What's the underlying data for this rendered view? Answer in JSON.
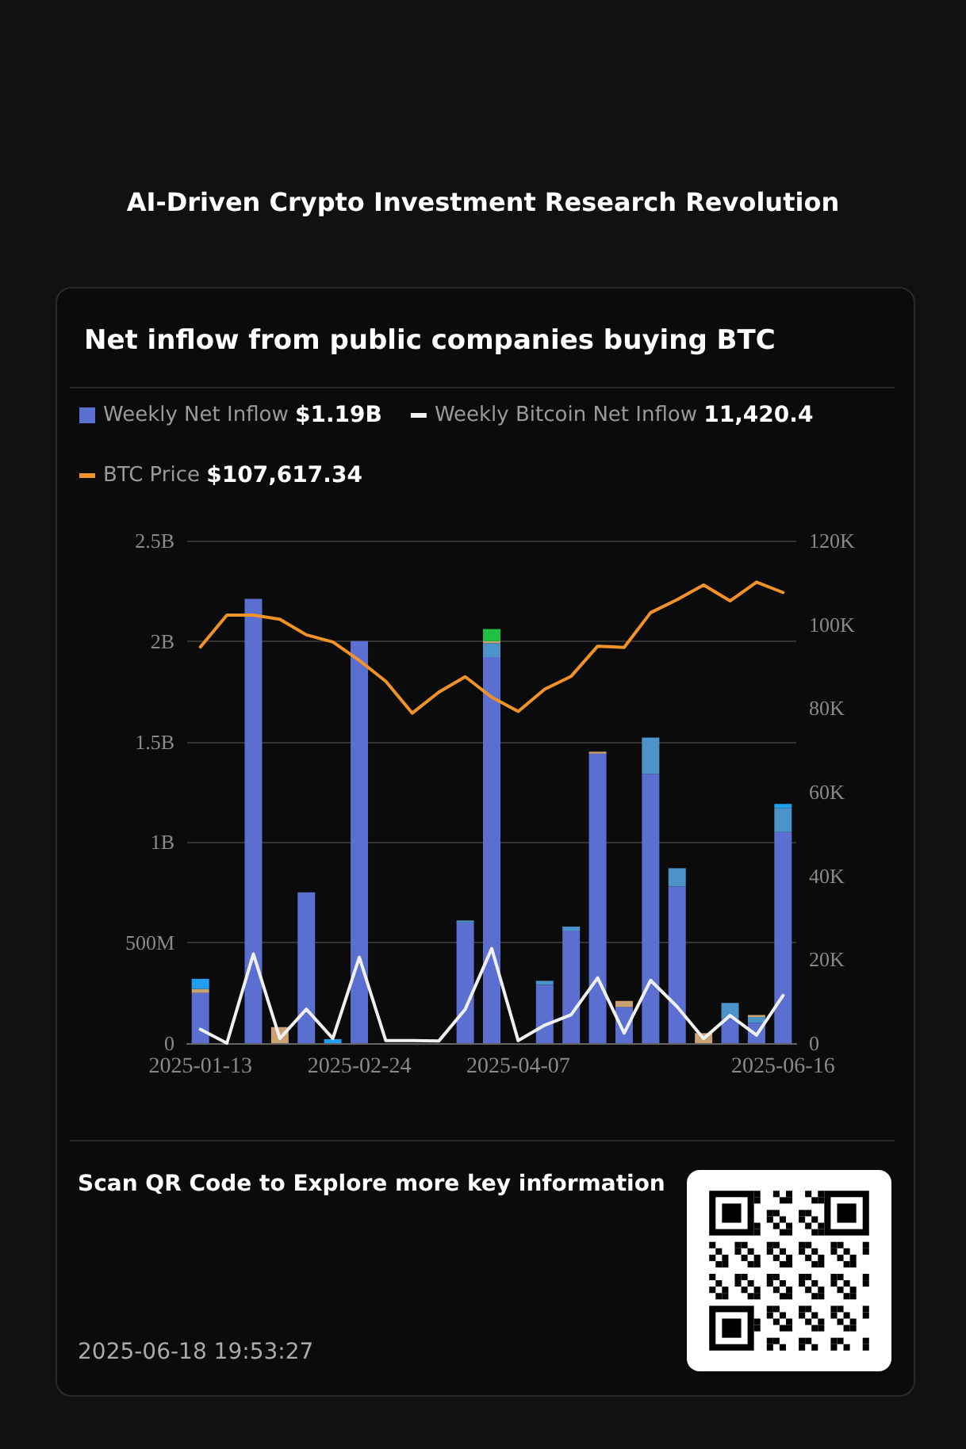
{
  "chart_data": {
    "type": "bar",
    "title": "Net inflow from public companies buying BTC",
    "subtitle": "AI-Driven Crypto Investment Research Revolution",
    "categories": [
      "2025-01-13",
      null,
      null,
      null,
      null,
      null,
      "2025-02-24",
      null,
      null,
      null,
      null,
      null,
      "2025-04-07",
      null,
      null,
      null,
      null,
      null,
      null,
      null,
      null,
      null,
      "2025-06-16"
    ],
    "stacked": true,
    "series": [
      {
        "name": "Weekly Net Inflow",
        "color": "#5a6fd0",
        "values": [
          250000000,
          null,
          2210000000,
          null,
          750000000,
          null,
          2000000000,
          null,
          null,
          null,
          600000000,
          1920000000,
          null,
          290000000,
          560000000,
          1440000000,
          180000000,
          1340000000,
          780000000,
          null,
          120000000,
          100000000,
          1050000000
        ]
      },
      {
        "color": "#4b93c9",
        "values": [
          null,
          null,
          null,
          null,
          null,
          null,
          null,
          null,
          null,
          null,
          10000000,
          70000000,
          null,
          20000000,
          20000000,
          null,
          null,
          180000000,
          90000000,
          null,
          80000000,
          30000000,
          120000000
        ]
      },
      {
        "color": "#c9a273",
        "values": [
          20000000,
          null,
          null,
          80000000,
          null,
          null,
          null,
          null,
          null,
          null,
          null,
          10000000,
          null,
          null,
          null,
          10000000,
          30000000,
          null,
          null,
          50000000,
          null,
          10000000,
          null
        ]
      },
      {
        "color": "#1e9ff0",
        "values": [
          50000000,
          null,
          null,
          null,
          null,
          20000000,
          null,
          null,
          null,
          null,
          null,
          null,
          null,
          null,
          null,
          null,
          null,
          null,
          null,
          null,
          null,
          null,
          20000000
        ]
      },
      {
        "color": "#20c040",
        "values": [
          null,
          null,
          null,
          null,
          null,
          null,
          null,
          null,
          null,
          null,
          null,
          60000000,
          null,
          null,
          null,
          null,
          null,
          null,
          null,
          null,
          null,
          null,
          null
        ]
      },
      {
        "name": "Weekly Bitcoin Net Inflow",
        "type": "line",
        "axis": "y2",
        "color": "#f0f0f0",
        "values": [
          3300,
          0,
          21300,
          1100,
          8100,
          1100,
          20500,
          600,
          600,
          500,
          8100,
          22600,
          600,
          4300,
          6800,
          15600,
          2400,
          15000,
          8700,
          1100,
          6600,
          1900,
          11400
        ]
      },
      {
        "name": "BTC Price",
        "type": "line",
        "axis": "y2",
        "color": "#f0922a",
        "values": [
          94600,
          102200,
          102200,
          101200,
          97500,
          95800,
          91400,
          86400,
          78800,
          83800,
          87500,
          82600,
          79200,
          84500,
          87600,
          94800,
          94500,
          102800,
          105900,
          109400,
          105600,
          110100,
          107600
        ]
      }
    ],
    "ylim": [
      0,
      2500000000
    ],
    "yticks": [
      0,
      {
        "value": 500000000,
        "label": "500M"
      },
      {
        "value": 1000000000,
        "label": "1B"
      },
      {
        "value": 1500000000,
        "label": "1.5B"
      },
      {
        "value": 2000000000,
        "label": "2B"
      },
      {
        "value": 2500000000,
        "label": "2.5B"
      }
    ],
    "y2lim": [
      0,
      120000
    ],
    "y2ticks": [
      0,
      {
        "value": 20000,
        "label": "20K"
      },
      {
        "value": 40000,
        "label": "40K"
      },
      {
        "value": 60000,
        "label": "60K"
      },
      {
        "value": 80000,
        "label": "80K"
      },
      {
        "value": 100000,
        "label": "100K"
      },
      {
        "value": 120000,
        "label": "120K"
      }
    ],
    "grid": "y",
    "legend": "top left",
    "marker": "none",
    "annotations": [
      "$1.19B",
      "11,420.4",
      "$107,617.34",
      "Scan QR Code to Explore more key information",
      "2025-06-18 19:53:27"
    ]
  }
}
